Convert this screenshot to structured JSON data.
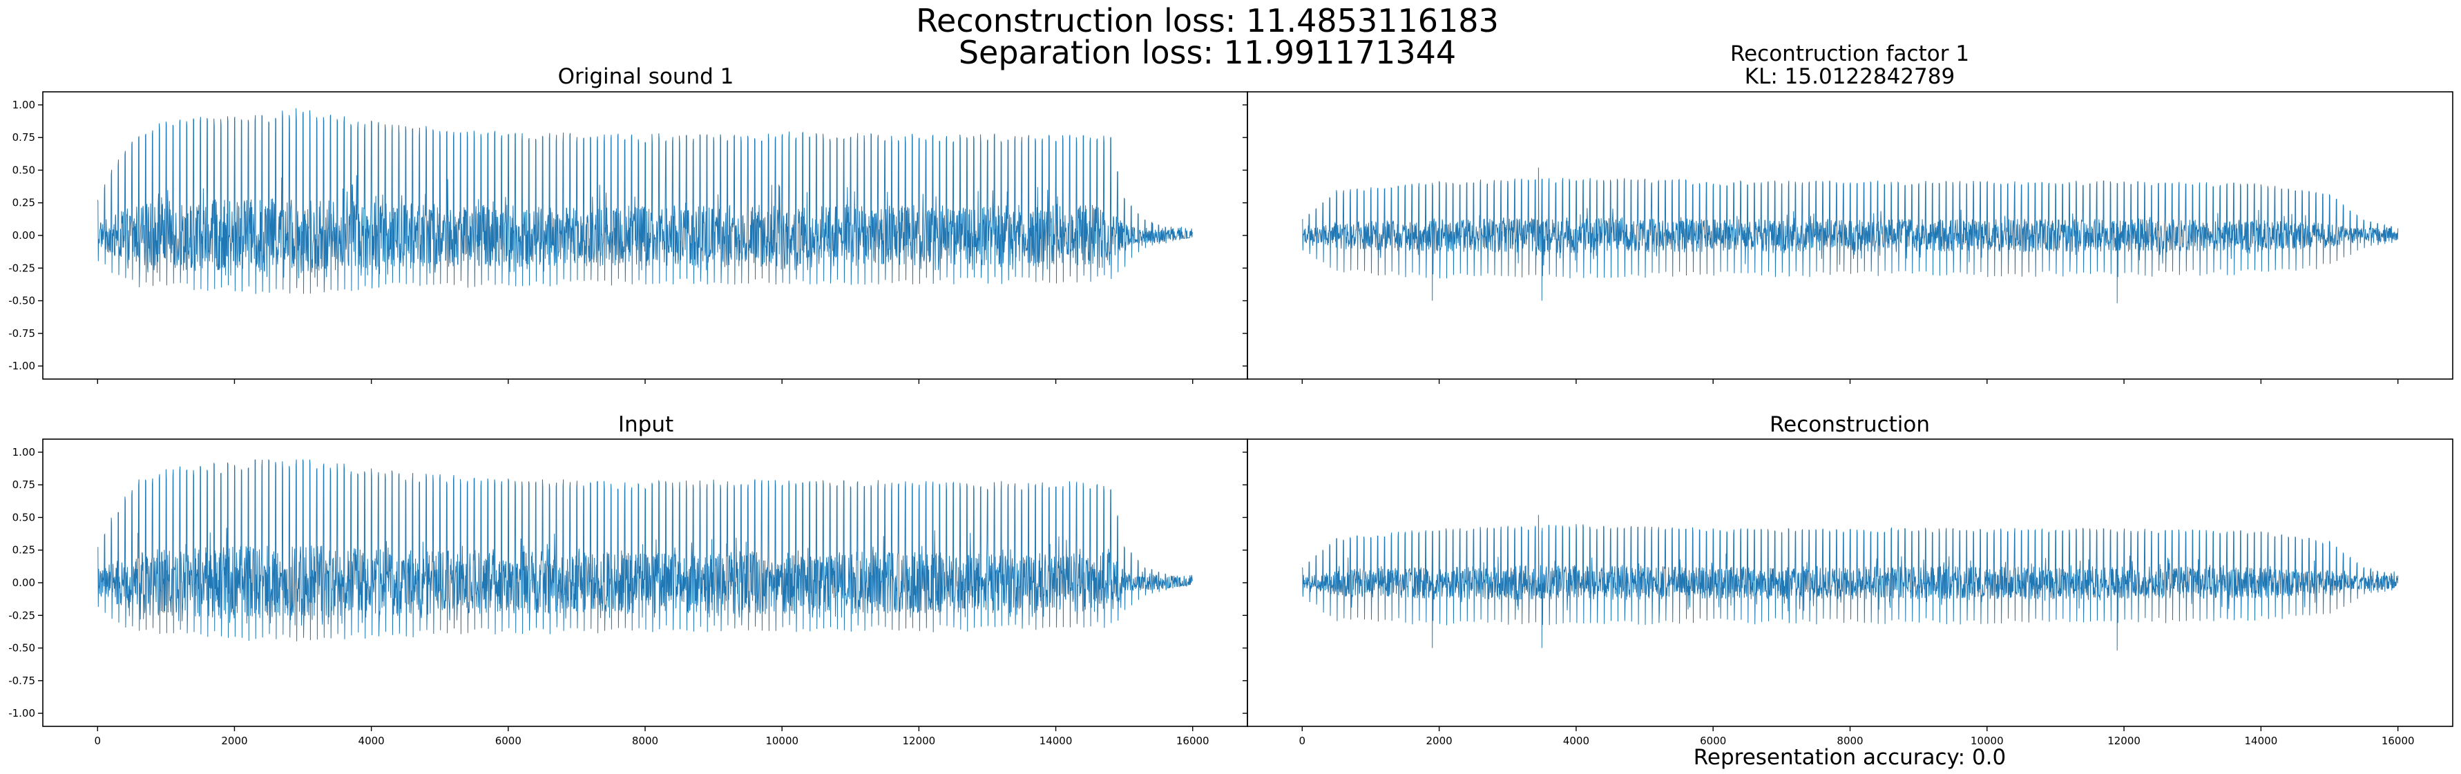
{
  "figure": {
    "suptitle_line1": "Reconstruction loss: 11.4853116183",
    "suptitle_line2": "Separation loss: 11.991171344",
    "footer": "Representation accuracy: 0.0"
  },
  "chart_data": [
    {
      "type": "line",
      "title": "Original sound 1",
      "xlim": [
        -800,
        16800
      ],
      "ylim": [
        -1.1,
        1.1
      ],
      "xticks": [
        "0",
        "2000",
        "4000",
        "6000",
        "8000",
        "10000",
        "12000",
        "14000",
        "16000"
      ],
      "xtick_values": [
        0,
        2000,
        4000,
        6000,
        8000,
        10000,
        12000,
        14000,
        16000
      ],
      "yticks": [
        "1.00",
        "0.75",
        "0.50",
        "0.25",
        "0.00",
        "-0.25",
        "-0.50",
        "-0.75",
        "-1.00"
      ],
      "ytick_values": [
        1.0,
        0.75,
        0.5,
        0.25,
        0.0,
        -0.25,
        -0.5,
        -0.75,
        -1.0
      ],
      "show_yticklabels": true,
      "show_xticklabels": false,
      "series": [
        {
          "color": "#1f77b4",
          "n_samples": 16000,
          "envelope_x": [
            0,
            200,
            600,
            1200,
            2000,
            3000,
            3500,
            4500,
            6000,
            8000,
            10000,
            12000,
            14000,
            14800,
            15000,
            15300,
            15700,
            16000
          ],
          "envelope_pos": [
            0.28,
            0.5,
            0.82,
            0.9,
            0.93,
            0.98,
            0.92,
            0.85,
            0.8,
            0.78,
            0.8,
            0.78,
            0.78,
            0.78,
            0.3,
            0.12,
            0.05,
            0.02
          ],
          "envelope_neg": [
            -0.2,
            -0.3,
            -0.4,
            -0.42,
            -0.44,
            -0.47,
            -0.45,
            -0.42,
            -0.4,
            -0.38,
            -0.38,
            -0.38,
            -0.37,
            -0.35,
            -0.25,
            -0.1,
            -0.05,
            -0.02
          ],
          "peak_spacing": 100
        }
      ]
    },
    {
      "type": "line",
      "title_line1": "Recontruction factor 1",
      "title_line2": "KL: 15.0122842789",
      "xlim": [
        -800,
        16800
      ],
      "ylim": [
        -1.1,
        1.1
      ],
      "xticks": [
        "0",
        "2000",
        "4000",
        "6000",
        "8000",
        "10000",
        "12000",
        "14000",
        "16000"
      ],
      "xtick_values": [
        0,
        2000,
        4000,
        6000,
        8000,
        10000,
        12000,
        14000,
        16000
      ],
      "show_yticklabels": false,
      "show_xticklabels": false,
      "series": [
        {
          "color": "#1f77b4",
          "n_samples": 16000,
          "envelope_x": [
            0,
            500,
            2000,
            4000,
            6000,
            8000,
            10000,
            12000,
            14000,
            15000,
            15500,
            16000
          ],
          "envelope_pos": [
            0.12,
            0.35,
            0.42,
            0.45,
            0.42,
            0.42,
            0.42,
            0.42,
            0.4,
            0.32,
            0.12,
            0.06
          ],
          "envelope_neg": [
            -0.12,
            -0.3,
            -0.33,
            -0.33,
            -0.32,
            -0.32,
            -0.32,
            -0.32,
            -0.3,
            -0.25,
            -0.1,
            -0.05
          ],
          "spikes": [
            [
              1900,
              -0.5
            ],
            [
              3450,
              0.52
            ],
            [
              3500,
              -0.5
            ],
            [
              11900,
              -0.52
            ]
          ],
          "peak_spacing": 100
        }
      ]
    },
    {
      "type": "line",
      "title": "Input",
      "xlim": [
        -800,
        16800
      ],
      "ylim": [
        -1.1,
        1.1
      ],
      "xticks": [
        "0",
        "2000",
        "4000",
        "6000",
        "8000",
        "10000",
        "12000",
        "14000",
        "16000"
      ],
      "xtick_values": [
        0,
        2000,
        4000,
        6000,
        8000,
        10000,
        12000,
        14000,
        16000
      ],
      "yticks": [
        "1.00",
        "0.75",
        "0.50",
        "0.25",
        "0.00",
        "-0.25",
        "-0.50",
        "-0.75",
        "-1.00"
      ],
      "ytick_values": [
        1.0,
        0.75,
        0.5,
        0.25,
        0.0,
        -0.25,
        -0.5,
        -0.75,
        -1.0
      ],
      "show_yticklabels": true,
      "show_xticklabels": true,
      "series": [
        {
          "color": "#1f77b4",
          "n_samples": 16000,
          "envelope_x": [
            0,
            200,
            600,
            1200,
            2000,
            3000,
            3500,
            4500,
            6000,
            8000,
            10000,
            12000,
            14000,
            14800,
            15000,
            15300,
            15700,
            16000
          ],
          "envelope_pos": [
            0.28,
            0.5,
            0.82,
            0.9,
            0.93,
            0.97,
            0.92,
            0.85,
            0.8,
            0.78,
            0.8,
            0.78,
            0.78,
            0.78,
            0.3,
            0.12,
            0.05,
            0.02
          ],
          "envelope_neg": [
            -0.2,
            -0.3,
            -0.4,
            -0.42,
            -0.44,
            -0.47,
            -0.45,
            -0.42,
            -0.4,
            -0.38,
            -0.38,
            -0.38,
            -0.37,
            -0.35,
            -0.25,
            -0.1,
            -0.05,
            -0.02
          ],
          "peak_spacing": 100
        }
      ]
    },
    {
      "type": "line",
      "title": "Reconstruction",
      "xlim": [
        -800,
        16800
      ],
      "ylim": [
        -1.1,
        1.1
      ],
      "xticks": [
        "0",
        "2000",
        "4000",
        "6000",
        "8000",
        "10000",
        "12000",
        "14000",
        "16000"
      ],
      "xtick_values": [
        0,
        2000,
        4000,
        6000,
        8000,
        10000,
        12000,
        14000,
        16000
      ],
      "show_yticklabels": false,
      "show_xticklabels": true,
      "series": [
        {
          "color": "#1f77b4",
          "n_samples": 16000,
          "envelope_x": [
            0,
            500,
            2000,
            4000,
            6000,
            8000,
            10000,
            12000,
            14000,
            15000,
            15500,
            16000
          ],
          "envelope_pos": [
            0.12,
            0.35,
            0.42,
            0.45,
            0.42,
            0.42,
            0.42,
            0.42,
            0.4,
            0.32,
            0.12,
            0.06
          ],
          "envelope_neg": [
            -0.12,
            -0.3,
            -0.33,
            -0.33,
            -0.32,
            -0.32,
            -0.32,
            -0.32,
            -0.3,
            -0.25,
            -0.1,
            -0.05
          ],
          "spikes": [
            [
              1900,
              -0.5
            ],
            [
              3450,
              0.52
            ],
            [
              3500,
              -0.5
            ],
            [
              11900,
              -0.52
            ]
          ],
          "peak_spacing": 100
        }
      ]
    }
  ]
}
